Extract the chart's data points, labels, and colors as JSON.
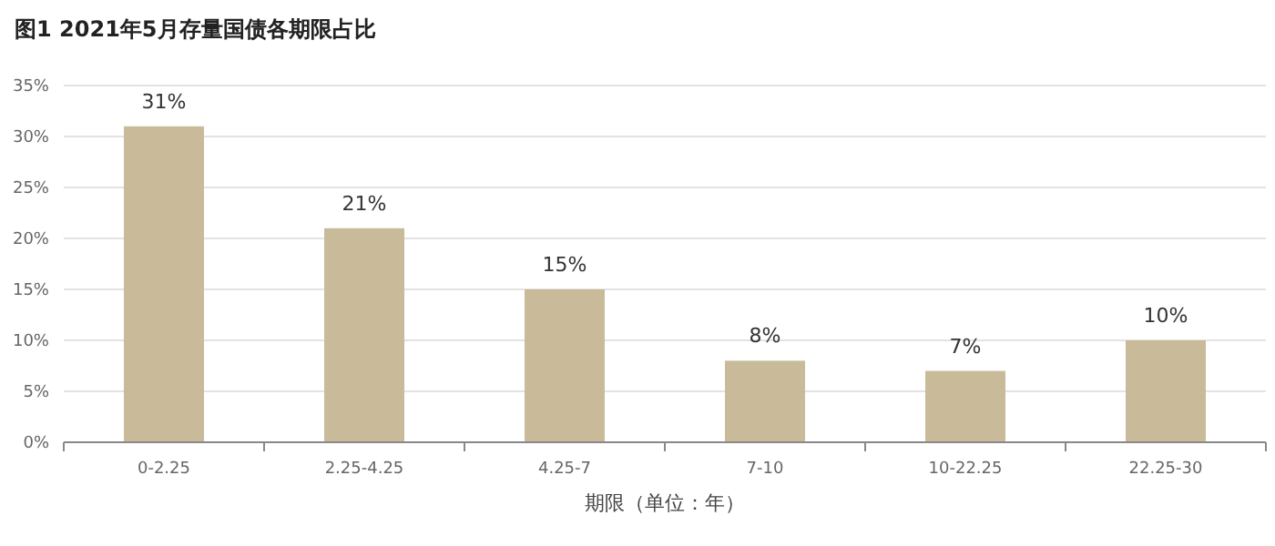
{
  "chart_data": {
    "type": "bar",
    "title": "图1 2021年5月存量国债各期限占比",
    "xlabel": "期限（单位：年）",
    "categories": [
      "0-2.25",
      "2.25-4.25",
      "4.25-7",
      "7-10",
      "10-22.25",
      "22.25-30"
    ],
    "values": [
      31,
      21,
      15,
      8,
      7,
      10
    ],
    "value_labels": [
      "31%",
      "21%",
      "15%",
      "8%",
      "7%",
      "10%"
    ],
    "color": "#c9bb9a",
    "ylim": [
      0,
      35
    ],
    "yticks": [
      {
        "value": 0,
        "label": "0%"
      },
      {
        "value": 5,
        "label": "5%"
      },
      {
        "value": 10,
        "label": "10%"
      },
      {
        "value": 15,
        "label": "15%"
      },
      {
        "value": 20,
        "label": "20%"
      },
      {
        "value": 25,
        "label": "25%"
      },
      {
        "value": 30,
        "label": "30%"
      },
      {
        "value": 35,
        "label": "35%"
      }
    ],
    "grid": "y"
  }
}
